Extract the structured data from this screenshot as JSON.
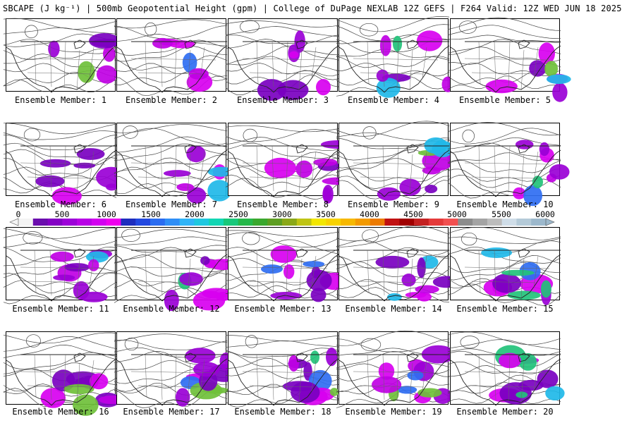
{
  "header": {
    "title": "SBCAPE (J kg⁻¹) | 500mb Geopotential Height (gpm) | College of DuPage NEXLAB 12Z GEFS | F264 Valid: 12Z WED JUN 18 2025"
  },
  "legend": {
    "tick_labels": [
      "0",
      "500",
      "1000",
      "1500",
      "2000",
      "2500",
      "3000",
      "3500",
      "4000",
      "4500",
      "5000",
      "5500",
      "6000"
    ],
    "colors": [
      "#f4f4f4",
      "#6a0dad",
      "#8300c4",
      "#9c00d8",
      "#b800e6",
      "#d200f0",
      "#ee00ee",
      "#1e2dbe",
      "#2248e0",
      "#2a6cf0",
      "#2f8ef6",
      "#30b4f7",
      "#1fc8e0",
      "#12d6b4",
      "#18c87a",
      "#26b84a",
      "#3aa82e",
      "#5e9e22",
      "#8aa818",
      "#bfc414",
      "#f2e600",
      "#f7d200",
      "#f6b800",
      "#f39a00",
      "#ec7a00",
      "#c01010",
      "#a00000",
      "#c42222",
      "#e43a3a",
      "#f25050",
      "#8c8c8c",
      "#a4a4a4",
      "#bcbcbc",
      "#cfdde8",
      "#b4cad8",
      "#9cb8cc"
    ]
  },
  "panels": [
    {
      "label": "Ensemble Member: 1"
    },
    {
      "label": "Ensemble Member: 2"
    },
    {
      "label": "Ensemble Member: 3"
    },
    {
      "label": "Ensemble Member: 4"
    },
    {
      "label": "Ensemble Member: 5"
    },
    {
      "label": "Ensemble Member: 6"
    },
    {
      "label": "Ensemble Member: 7"
    },
    {
      "label": "Ensemble Member: 8"
    },
    {
      "label": "Ensemble Member: 9"
    },
    {
      "label": "Ensemble Member: 10"
    },
    {
      "label": "Ensemble Member: 11"
    },
    {
      "label": "Ensemble Member: 12"
    },
    {
      "label": "Ensemble Member: 13"
    },
    {
      "label": "Ensemble Member: 14"
    },
    {
      "label": "Ensemble Member: 15"
    },
    {
      "label": "Ensemble Member: 16"
    },
    {
      "label": "Ensemble Member: 17"
    },
    {
      "label": "Ensemble Member: 18"
    },
    {
      "label": "Ensemble Member: 19"
    },
    {
      "label": "Ensemble Member: 20"
    }
  ]
}
